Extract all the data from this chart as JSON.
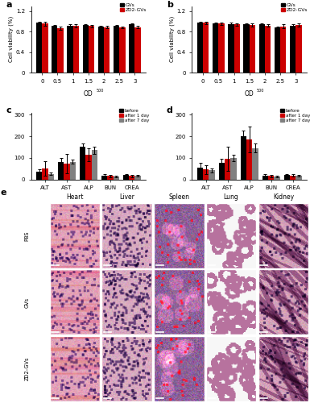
{
  "panel_a": {
    "ylabel": "Cell viability (%)",
    "x_labels": [
      "0",
      "0.5",
      "1",
      "1.5",
      "2",
      "2.5",
      "3"
    ],
    "gv_vals": [
      0.97,
      0.91,
      0.92,
      0.93,
      0.9,
      0.91,
      0.94
    ],
    "gv_err": [
      0.02,
      0.02,
      0.02,
      0.015,
      0.015,
      0.02,
      0.02
    ],
    "zd2_vals": [
      0.96,
      0.87,
      0.91,
      0.91,
      0.89,
      0.88,
      0.89
    ],
    "zd2_err": [
      0.04,
      0.03,
      0.03,
      0.02,
      0.025,
      0.02,
      0.03
    ],
    "ylim": [
      0,
      1.3
    ],
    "yticks": [
      0,
      0.4,
      0.8,
      1.2
    ]
  },
  "panel_b": {
    "ylabel": "Cell viability (%)",
    "x_labels": [
      "0",
      "0.5",
      "1",
      "1.5",
      "2",
      "2.5",
      "3"
    ],
    "gv_vals": [
      0.97,
      0.96,
      0.95,
      0.94,
      0.94,
      0.88,
      0.92
    ],
    "gv_err": [
      0.02,
      0.02,
      0.02,
      0.02,
      0.02,
      0.02,
      0.02
    ],
    "zd2_vals": [
      0.97,
      0.96,
      0.94,
      0.93,
      0.92,
      0.9,
      0.93
    ],
    "zd2_err": [
      0.03,
      0.025,
      0.025,
      0.025,
      0.025,
      0.04,
      0.035
    ],
    "ylim": [
      0,
      1.3
    ],
    "yticks": [
      0,
      0.4,
      0.8,
      1.2
    ]
  },
  "panel_c": {
    "x_labels": [
      "ALT",
      "AST",
      "ALP",
      "BUN",
      "CREA"
    ],
    "before_vals": [
      35,
      80,
      150,
      18,
      20
    ],
    "before_err": [
      10,
      20,
      15,
      5,
      5
    ],
    "after1_vals": [
      50,
      72,
      115,
      15,
      16
    ],
    "after1_err": [
      35,
      45,
      30,
      5,
      5
    ],
    "after7_vals": [
      25,
      82,
      135,
      12,
      16
    ],
    "after7_err": [
      5,
      10,
      18,
      4,
      4
    ],
    "ylim": [
      0,
      310
    ],
    "yticks": [
      0,
      100,
      200,
      300
    ]
  },
  "panel_d": {
    "x_labels": [
      "ALT",
      "AST",
      "ALP",
      "BUN",
      "CREA"
    ],
    "before_vals": [
      55,
      75,
      200,
      18,
      20
    ],
    "before_err": [
      20,
      20,
      25,
      5,
      5
    ],
    "after1_vals": [
      45,
      95,
      185,
      16,
      18
    ],
    "after1_err": [
      20,
      55,
      60,
      5,
      5
    ],
    "after7_vals": [
      42,
      100,
      145,
      14,
      17
    ],
    "after7_err": [
      10,
      15,
      20,
      4,
      4
    ],
    "ylim": [
      0,
      310
    ],
    "yticks": [
      0,
      100,
      200,
      300
    ]
  },
  "colors": {
    "black": "#000000",
    "red": "#CC0000",
    "gray": "#808080"
  },
  "organs": [
    "Heart",
    "Liver",
    "Spleen",
    "Lung",
    "Kidney"
  ],
  "groups": [
    "PBS",
    "GVs",
    "ZD2-GVs"
  ]
}
